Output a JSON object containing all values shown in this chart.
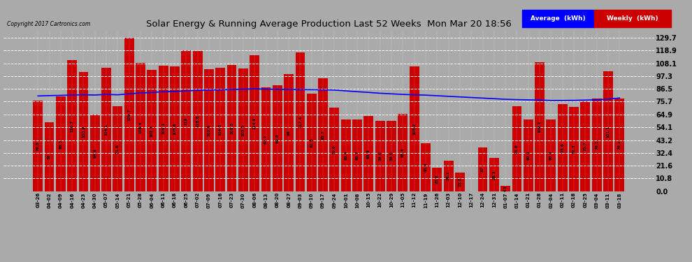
{
  "title": "Solar Energy & Running Average Production Last 52 Weeks  Mon Mar 20 18:56",
  "copyright": "Copyright 2017 Cartronics.com",
  "legend_label_avg": "Average  (kWh)",
  "legend_label_weekly": "Weekly  (kWh)",
  "bar_color": "#cc0000",
  "line_color": "blue",
  "background_color": "#aaaaaa",
  "plot_bg_color": "#aaaaaa",
  "grid_color": "white",
  "text_color": "black",
  "dates": [
    "03-26",
    "04-02",
    "04-09",
    "04-16",
    "04-23",
    "04-30",
    "05-07",
    "05-14",
    "05-21",
    "05-28",
    "06-04",
    "06-11",
    "06-18",
    "06-25",
    "07-02",
    "07-09",
    "07-16",
    "07-23",
    "07-30",
    "08-06",
    "08-13",
    "08-20",
    "08-27",
    "09-03",
    "09-10",
    "09-17",
    "09-24",
    "10-01",
    "10-08",
    "10-15",
    "10-22",
    "10-29",
    "11-05",
    "11-12",
    "11-19",
    "11-26",
    "12-03",
    "12-10",
    "12-17",
    "12-24",
    "12-31",
    "01-07",
    "01-14",
    "01-21",
    "01-28",
    "02-04",
    "02-11",
    "02-18",
    "02-25",
    "03-04",
    "03-11",
    "03-18"
  ],
  "weekly_values": [
    76.8,
    58.0,
    80.3,
    110.7,
    100.9,
    64.8,
    104.1,
    71.6,
    129.7,
    108.4,
    102.3,
    106.1,
    105.6,
    119.0,
    118.6,
    102.9,
    104.5,
    106.5,
    103.5,
    114.9,
    87.7,
    89.8,
    99.0,
    117.4,
    82.6,
    95.7,
    70.6,
    60.4,
    60.7,
    63.5,
    59.6,
    59.6,
    65.4,
    105.2,
    40.4,
    20.2,
    26.1,
    15.8,
    0.0,
    37.0,
    28.3,
    4.3,
    71.6,
    60.4,
    109.2,
    60.4,
    73.6,
    71.3,
    75.7,
    78.1,
    101.1,
    78.1
  ],
  "average_values": [
    80.5,
    80.8,
    81.0,
    81.3,
    81.5,
    81.3,
    81.8,
    81.5,
    82.3,
    83.0,
    83.5,
    84.0,
    84.3,
    84.8,
    85.3,
    85.6,
    85.7,
    86.0,
    86.2,
    86.5,
    86.3,
    86.1,
    86.0,
    85.9,
    85.8,
    85.7,
    85.5,
    84.8,
    84.1,
    83.5,
    82.8,
    82.3,
    81.8,
    81.5,
    81.2,
    80.7,
    80.2,
    79.7,
    79.2,
    78.7,
    78.2,
    77.7,
    77.4,
    77.2,
    77.0,
    76.7,
    76.7,
    76.8,
    77.0,
    77.3,
    77.8,
    78.8
  ],
  "yticks": [
    0.0,
    10.8,
    21.6,
    32.4,
    43.2,
    54.1,
    64.9,
    75.7,
    86.5,
    97.3,
    108.1,
    118.9,
    129.7
  ],
  "ylim": [
    0,
    135
  ],
  "bar_width": 0.85
}
